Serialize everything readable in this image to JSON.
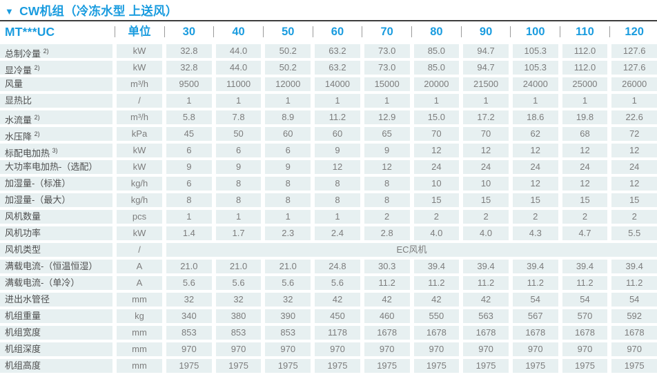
{
  "header": {
    "marker": "▼",
    "title": "CW机组（冷冻水型 上送风）"
  },
  "colors": {
    "accent_blue": "#1a9cdf",
    "cell_background": "#e7f0f1",
    "label_text": "#4e4e4e",
    "value_text": "#7c7c7c",
    "title_rule": "#3c3c3c"
  },
  "table": {
    "model_label": "MT***UC",
    "unit_header": "单位",
    "columns": [
      "30",
      "40",
      "50",
      "60",
      "70",
      "80",
      "90",
      "100",
      "110",
      "120"
    ],
    "rows": [
      {
        "label": "总制冷量",
        "sup": "2)",
        "unit": "kW",
        "values": [
          "32.8",
          "44.0",
          "50.2",
          "63.2",
          "73.0",
          "85.0",
          "94.7",
          "105.3",
          "112.0",
          "127.6"
        ]
      },
      {
        "label": "显冷量",
        "sup": "2)",
        "unit": "kW",
        "values": [
          "32.8",
          "44.0",
          "50.2",
          "63.2",
          "73.0",
          "85.0",
          "94.7",
          "105.3",
          "112.0",
          "127.6"
        ]
      },
      {
        "label": "风量",
        "sup": "",
        "unit": "m³/h",
        "values": [
          "9500",
          "11000",
          "12000",
          "14000",
          "15000",
          "20000",
          "21500",
          "24000",
          "25000",
          "26000"
        ]
      },
      {
        "label": "显热比",
        "sup": "",
        "unit": "/",
        "values": [
          "1",
          "1",
          "1",
          "1",
          "1",
          "1",
          "1",
          "1",
          "1",
          "1"
        ]
      },
      {
        "label": "水流量",
        "sup": "2)",
        "unit": "m³/h",
        "values": [
          "5.8",
          "7.8",
          "8.9",
          "11.2",
          "12.9",
          "15.0",
          "17.2",
          "18.6",
          "19.8",
          "22.6"
        ]
      },
      {
        "label": "水压降",
        "sup": "2)",
        "unit": "kPa",
        "values": [
          "45",
          "50",
          "60",
          "60",
          "65",
          "70",
          "70",
          "62",
          "68",
          "72"
        ]
      },
      {
        "label": "标配电加热",
        "sup": "3)",
        "unit": "kW",
        "values": [
          "6",
          "6",
          "6",
          "9",
          "9",
          "12",
          "12",
          "12",
          "12",
          "12"
        ]
      },
      {
        "label": "大功率电加热-（选配）",
        "sup": "",
        "unit": "kW",
        "values": [
          "9",
          "9",
          "9",
          "12",
          "12",
          "24",
          "24",
          "24",
          "24",
          "24"
        ]
      },
      {
        "label": "加湿量-（标准）",
        "sup": "",
        "unit": "kg/h",
        "values": [
          "6",
          "8",
          "8",
          "8",
          "8",
          "10",
          "10",
          "12",
          "12",
          "12"
        ]
      },
      {
        "label": "加湿量-（最大）",
        "sup": "",
        "unit": "kg/h",
        "values": [
          "8",
          "8",
          "8",
          "8",
          "8",
          "15",
          "15",
          "15",
          "15",
          "15"
        ]
      },
      {
        "label": "风机数量",
        "sup": "",
        "unit": "pcs",
        "values": [
          "1",
          "1",
          "1",
          "1",
          "2",
          "2",
          "2",
          "2",
          "2",
          "2"
        ]
      },
      {
        "label": "风机功率",
        "sup": "",
        "unit": "kW",
        "values": [
          "1.4",
          "1.7",
          "2.3",
          "2.4",
          "2.8",
          "4.0",
          "4.0",
          "4.3",
          "4.7",
          "5.5"
        ]
      },
      {
        "label": "风机类型",
        "sup": "",
        "unit": "/",
        "merged": "EC风机"
      },
      {
        "label": "满载电流-（恒温恒湿）",
        "sup": "",
        "unit": "A",
        "values": [
          "21.0",
          "21.0",
          "21.0",
          "24.8",
          "30.3",
          "39.4",
          "39.4",
          "39.4",
          "39.4",
          "39.4"
        ]
      },
      {
        "label": "满载电流-（单冷）",
        "sup": "",
        "unit": "A",
        "values": [
          "5.6",
          "5.6",
          "5.6",
          "5.6",
          "11.2",
          "11.2",
          "11.2",
          "11.2",
          "11.2",
          "11.2"
        ]
      },
      {
        "label": "进出水管径",
        "sup": "",
        "unit": "mm",
        "values": [
          "32",
          "32",
          "32",
          "42",
          "42",
          "42",
          "42",
          "54",
          "54",
          "54"
        ]
      },
      {
        "label": "机组重量",
        "sup": "",
        "unit": "kg",
        "values": [
          "340",
          "380",
          "390",
          "450",
          "460",
          "550",
          "563",
          "567",
          "570",
          "592"
        ]
      },
      {
        "label": "机组宽度",
        "sup": "",
        "unit": "mm",
        "values": [
          "853",
          "853",
          "853",
          "1178",
          "1678",
          "1678",
          "1678",
          "1678",
          "1678",
          "1678"
        ]
      },
      {
        "label": "机组深度",
        "sup": "",
        "unit": "mm",
        "values": [
          "970",
          "970",
          "970",
          "970",
          "970",
          "970",
          "970",
          "970",
          "970",
          "970"
        ]
      },
      {
        "label": "机组高度",
        "sup": "",
        "unit": "mm",
        "values": [
          "1975",
          "1975",
          "1975",
          "1975",
          "1975",
          "1975",
          "1975",
          "1975",
          "1975",
          "1975"
        ]
      }
    ]
  }
}
